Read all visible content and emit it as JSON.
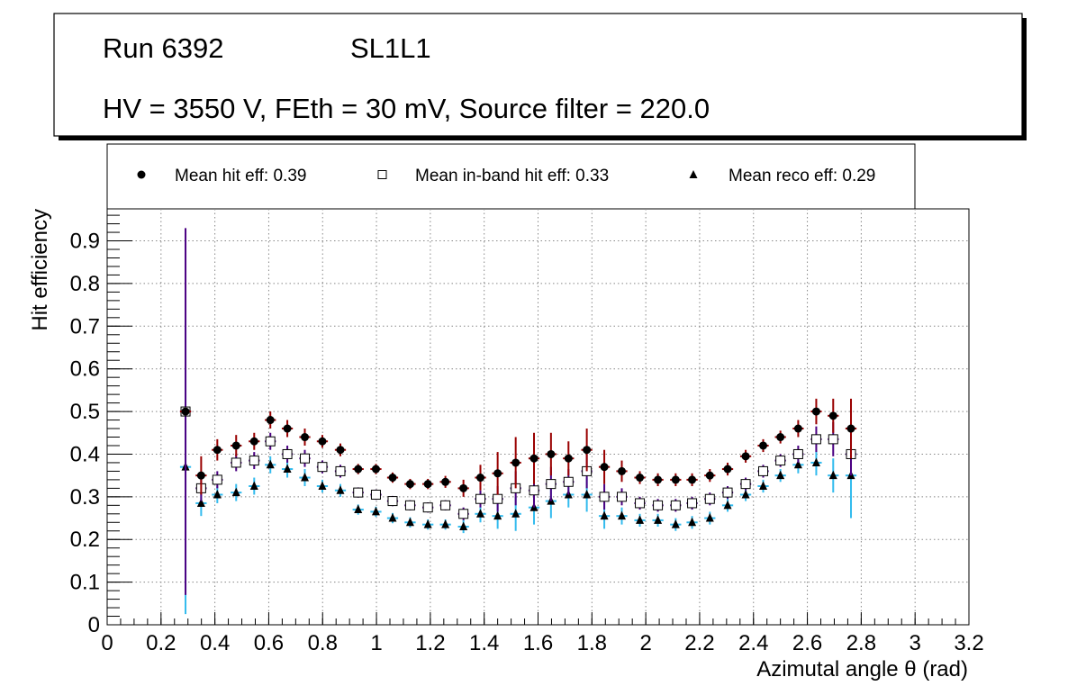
{
  "title_box": {
    "run": "Run 6392",
    "layer": "SL1L1",
    "conditions": "HV = 3550 V, FEth = 30 mV, Source filter = 220.0"
  },
  "colors": {
    "hit_marker": "#000000",
    "hit_error": "#990000",
    "inband_error": "#4b0082",
    "reco_error": "#33bbee",
    "frame": "#000000",
    "grid": "#888888"
  },
  "chart_data": {
    "type": "scatter",
    "xlabel": "Azimutal angle θ (rad)",
    "ylabel": "Hit efficiency",
    "xlim": [
      0,
      3.2
    ],
    "ylim": [
      0,
      0.975
    ],
    "x_ticks": [
      "0",
      "0.2",
      "0.4",
      "0.6",
      "0.8",
      "1",
      "1.2",
      "1.4",
      "1.6",
      "1.8",
      "2",
      "2.2",
      "2.4",
      "2.6",
      "2.8",
      "3",
      "3.2"
    ],
    "y_ticks": [
      "0",
      "0.1",
      "0.2",
      "0.3",
      "0.4",
      "0.5",
      "0.6",
      "0.7",
      "0.8",
      "0.9"
    ],
    "grid": true,
    "x_halfwidth": 0.0205,
    "x": [
      0.291,
      0.349,
      0.409,
      0.479,
      0.546,
      0.606,
      0.669,
      0.734,
      0.799,
      0.866,
      0.932,
      0.998,
      1.06,
      1.125,
      1.191,
      1.256,
      1.323,
      1.386,
      1.45,
      1.517,
      1.585,
      1.648,
      1.713,
      1.781,
      1.846,
      1.911,
      1.978,
      2.045,
      2.111,
      2.172,
      2.238,
      2.304,
      2.371,
      2.436,
      2.5,
      2.566,
      2.633,
      2.696,
      2.762
    ],
    "series": [
      {
        "name": "Mean hit  eff: 0.39",
        "marker": "filled-circle",
        "values": [
          0.5,
          0.35,
          0.41,
          0.42,
          0.43,
          0.48,
          0.46,
          0.44,
          0.43,
          0.41,
          0.365,
          0.365,
          0.345,
          0.33,
          0.33,
          0.335,
          0.32,
          0.345,
          0.355,
          0.38,
          0.39,
          0.4,
          0.39,
          0.41,
          0.37,
          0.36,
          0.345,
          0.34,
          0.34,
          0.34,
          0.35,
          0.365,
          0.395,
          0.42,
          0.44,
          0.46,
          0.5,
          0.49,
          0.46
        ],
        "err": [
          0.0,
          0.045,
          0.025,
          0.025,
          0.02,
          0.02,
          0.02,
          0.02,
          0.015,
          0.015,
          0.012,
          0.012,
          0.012,
          0.012,
          0.012,
          0.014,
          0.02,
          0.03,
          0.05,
          0.06,
          0.06,
          0.05,
          0.04,
          0.05,
          0.04,
          0.025,
          0.015,
          0.015,
          0.015,
          0.015,
          0.015,
          0.015,
          0.015,
          0.015,
          0.015,
          0.02,
          0.03,
          0.04,
          0.07
        ]
      },
      {
        "name": "Mean in-band hit eff: 0.33",
        "marker": "open-square",
        "values": [
          0.5,
          0.32,
          0.34,
          0.38,
          0.385,
          0.43,
          0.4,
          0.39,
          0.37,
          0.36,
          0.31,
          0.305,
          0.29,
          0.28,
          0.275,
          0.28,
          0.26,
          0.295,
          0.295,
          0.32,
          0.315,
          0.33,
          0.335,
          0.36,
          0.3,
          0.3,
          0.285,
          0.28,
          0.28,
          0.285,
          0.295,
          0.31,
          0.33,
          0.36,
          0.385,
          0.4,
          0.435,
          0.435,
          0.4
        ],
        "err": [
          0.43,
          0.03,
          0.02,
          0.02,
          0.02,
          0.02,
          0.02,
          0.02,
          0.015,
          0.015,
          0.012,
          0.012,
          0.012,
          0.012,
          0.012,
          0.012,
          0.015,
          0.02,
          0.03,
          0.04,
          0.04,
          0.04,
          0.03,
          0.04,
          0.03,
          0.02,
          0.015,
          0.015,
          0.015,
          0.015,
          0.015,
          0.015,
          0.015,
          0.015,
          0.015,
          0.02,
          0.03,
          0.04,
          0.05
        ]
      },
      {
        "name": "Mean reco eff: 0.29",
        "marker": "filled-triangle",
        "values": [
          0.37,
          0.285,
          0.305,
          0.31,
          0.325,
          0.375,
          0.365,
          0.345,
          0.325,
          0.315,
          0.27,
          0.265,
          0.25,
          0.24,
          0.235,
          0.235,
          0.23,
          0.26,
          0.255,
          0.26,
          0.275,
          0.29,
          0.305,
          0.305,
          0.255,
          0.255,
          0.245,
          0.245,
          0.235,
          0.24,
          0.25,
          0.28,
          0.305,
          0.325,
          0.35,
          0.375,
          0.38,
          0.35,
          0.35
        ],
        "err": [
          0.345,
          0.03,
          0.02,
          0.02,
          0.02,
          0.02,
          0.02,
          0.02,
          0.015,
          0.015,
          0.012,
          0.012,
          0.012,
          0.012,
          0.012,
          0.012,
          0.015,
          0.02,
          0.03,
          0.04,
          0.04,
          0.04,
          0.03,
          0.04,
          0.03,
          0.02,
          0.015,
          0.015,
          0.015,
          0.015,
          0.015,
          0.015,
          0.015,
          0.015,
          0.015,
          0.02,
          0.03,
          0.04,
          0.1
        ]
      }
    ]
  }
}
